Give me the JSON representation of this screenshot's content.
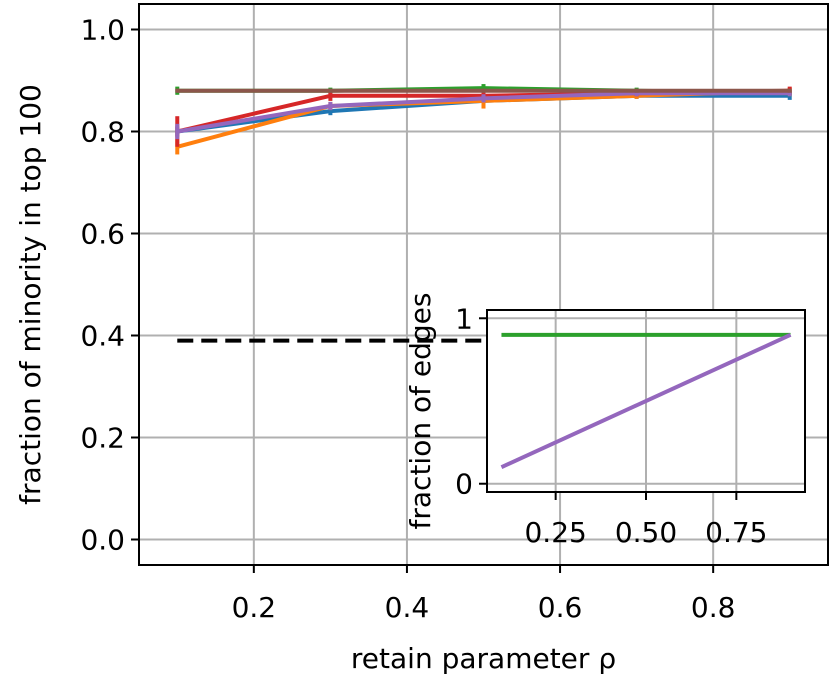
{
  "chart_data": [
    {
      "type": "line",
      "xlabel": "retain parameter ρ",
      "ylabel": "fraction of minority in top 100",
      "xlim": [
        0.05,
        0.95
      ],
      "ylim": [
        -0.05,
        1.05
      ],
      "xticks": [
        0.2,
        0.4,
        0.6,
        0.8
      ],
      "xtick_labels": [
        "0.2",
        "0.4",
        "0.6",
        "0.8"
      ],
      "yticks": [
        0.0,
        0.2,
        0.4,
        0.6,
        0.8,
        1.0
      ],
      "ytick_labels": [
        "0.0",
        "0.2",
        "0.4",
        "0.6",
        "0.8",
        "1.0"
      ],
      "grid": true,
      "x": [
        0.1,
        0.3,
        0.5,
        0.7,
        0.9
      ],
      "series": [
        {
          "color": "#1f77b4",
          "values": [
            0.8,
            0.84,
            0.86,
            0.87,
            0.87
          ],
          "err": [
            0.01,
            0.008,
            0.008,
            0.006,
            0.008
          ]
        },
        {
          "color": "#ff7f0e",
          "values": [
            0.77,
            0.85,
            0.86,
            0.87,
            0.88
          ],
          "err": [
            0.015,
            0.008,
            0.015,
            0.006,
            0.006
          ]
        },
        {
          "color": "#2ca02c",
          "values": [
            0.88,
            0.88,
            0.885,
            0.88,
            0.875
          ],
          "err": [
            0.008,
            0.006,
            0.008,
            0.006,
            0.006
          ]
        },
        {
          "color": "#d62728",
          "values": [
            0.8,
            0.87,
            0.87,
            0.875,
            0.88
          ],
          "err": [
            0.03,
            0.01,
            0.008,
            0.006,
            0.008
          ]
        },
        {
          "color": "#9467bd",
          "values": [
            0.8,
            0.85,
            0.865,
            0.875,
            0.875
          ],
          "err": [
            0.015,
            0.008,
            0.008,
            0.006,
            0.006
          ]
        },
        {
          "color": "#8c564b",
          "values": [
            0.88,
            0.88,
            0.88,
            0.88,
            0.88
          ],
          "err": [
            0.004,
            0.004,
            0.004,
            0.004,
            0.004
          ]
        }
      ],
      "reference_line": {
        "y": 0.39,
        "x_range": [
          0.1,
          0.9
        ],
        "style": "dashed",
        "color": "#000000"
      }
    },
    {
      "type": "line",
      "inset": true,
      "ylabel": "fraction of edges",
      "xlim": [
        0.06,
        0.94
      ],
      "ylim": [
        -0.05,
        1.05
      ],
      "xticks": [
        0.25,
        0.5,
        0.75
      ],
      "xtick_labels": [
        "0.25",
        "0.50",
        "0.75"
      ],
      "yticks": [
        0,
        1
      ],
      "ytick_labels": [
        "0",
        "1"
      ],
      "grid": true,
      "x": [
        0.1,
        0.9
      ],
      "series": [
        {
          "color": "#2ca02c",
          "values": [
            0.9,
            0.9
          ]
        },
        {
          "color": "#9467bd",
          "values": [
            0.1,
            0.9
          ]
        }
      ]
    }
  ]
}
